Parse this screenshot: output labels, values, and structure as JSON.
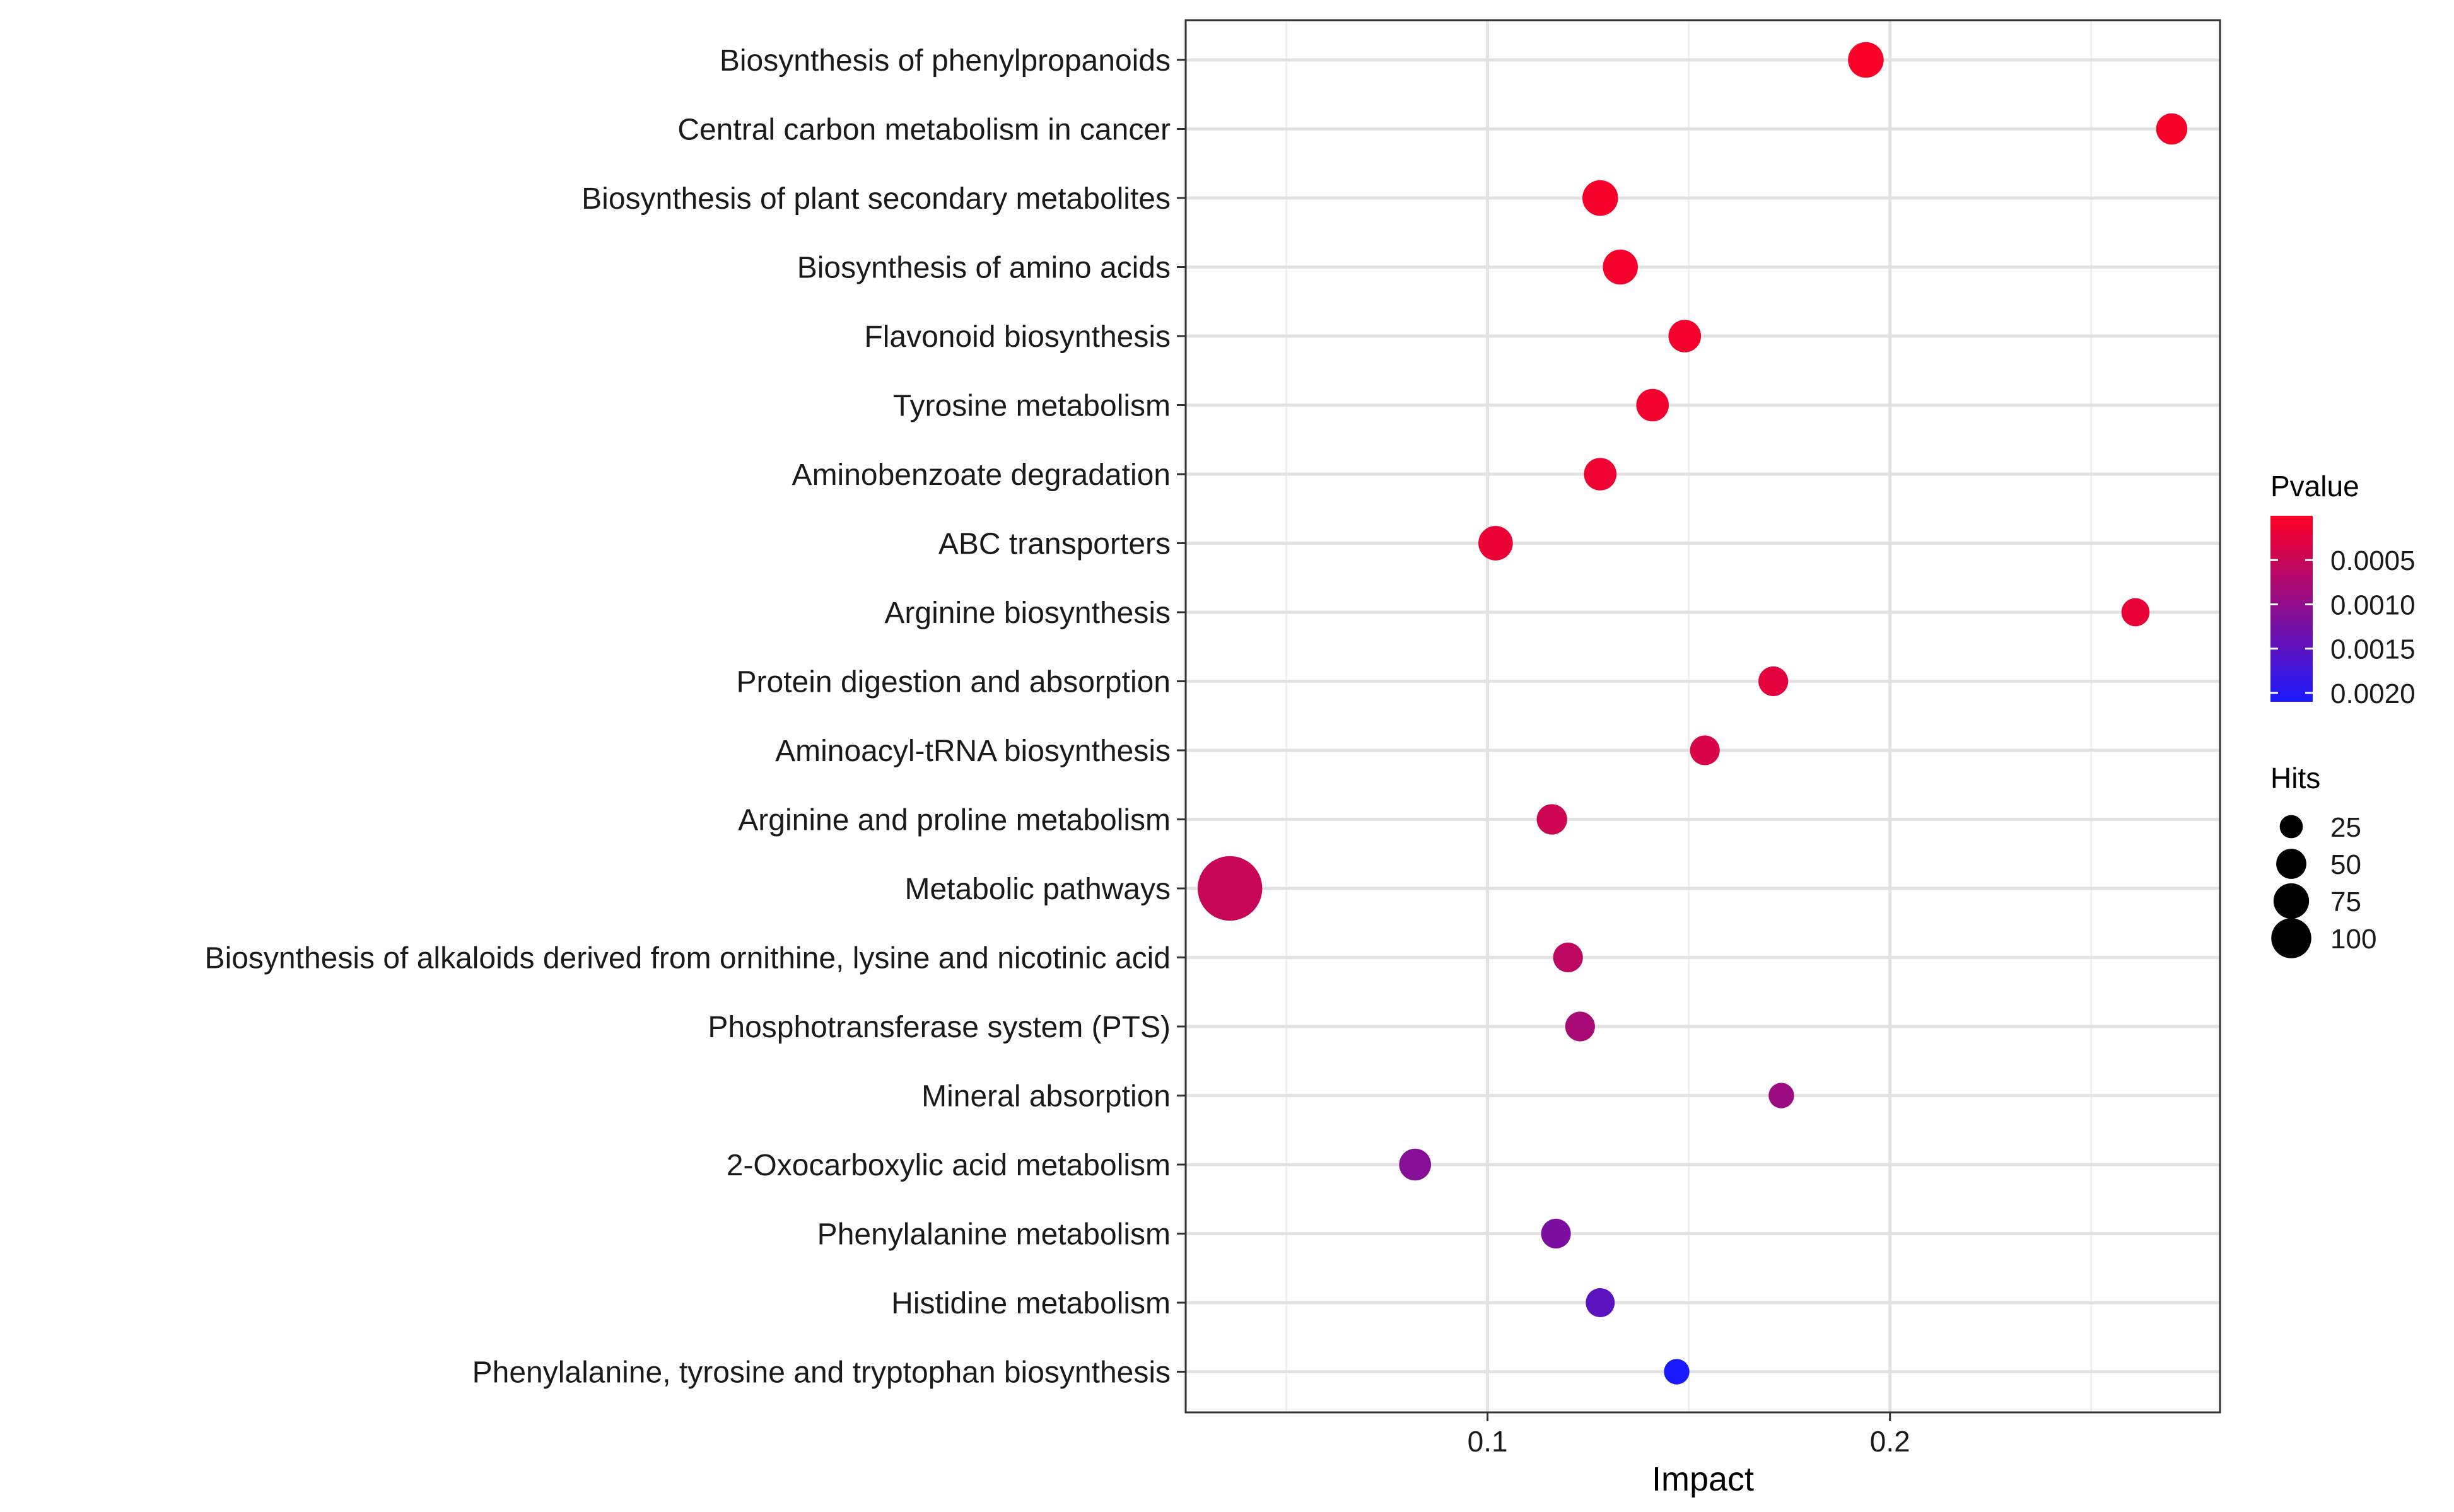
{
  "chart_data": {
    "type": "scatter",
    "title": "",
    "xlabel": "Impact",
    "ylabel": "",
    "xlim": [
      0.025,
      0.282
    ],
    "x_ticks": [
      0.1,
      0.2
    ],
    "x_tick_labels": [
      "0.1",
      "0.2"
    ],
    "x_minor_gridlines": [
      0.05,
      0.15,
      0.25
    ],
    "grid": true,
    "categories": [
      "Biosynthesis of phenylpropanoids",
      "Central carbon metabolism in cancer",
      "Biosynthesis of plant secondary metabolites",
      "Biosynthesis of amino acids",
      "Flavonoid biosynthesis",
      "Tyrosine metabolism",
      "Aminobenzoate degradation",
      "ABC transporters",
      "Arginine biosynthesis",
      "Protein digestion and absorption",
      "Aminoacyl-tRNA biosynthesis",
      "Arginine and proline metabolism",
      "Metabolic pathways",
      "Biosynthesis of alkaloids derived from ornithine, lysine and nicotinic acid",
      "Phosphotransferase system (PTS)",
      "Mineral absorption",
      "2-Oxocarboxylic acid metabolism",
      "Phenylalanine metabolism",
      "Histidine metabolism",
      "Phenylalanine, tyrosine and tryptophan biosynthesis"
    ],
    "points": [
      {
        "pathway": "Biosynthesis of phenylpropanoids",
        "impact": 0.194,
        "hits": 22,
        "pvalue": 5e-05
      },
      {
        "pathway": "Central carbon metabolism in cancer",
        "impact": 0.27,
        "hits": 15,
        "pvalue": 6e-05
      },
      {
        "pathway": "Biosynthesis of plant secondary metabolites",
        "impact": 0.128,
        "hits": 22,
        "pvalue": 8e-05
      },
      {
        "pathway": "Biosynthesis of amino acids",
        "impact": 0.133,
        "hits": 21,
        "pvalue": 9e-05
      },
      {
        "pathway": "Flavonoid biosynthesis",
        "impact": 0.149,
        "hits": 17,
        "pvalue": 0.0001
      },
      {
        "pathway": "Tyrosine metabolism",
        "impact": 0.141,
        "hits": 17,
        "pvalue": 0.00012
      },
      {
        "pathway": "Aminobenzoate degradation",
        "impact": 0.128,
        "hits": 17,
        "pvalue": 0.00015
      },
      {
        "pathway": "ABC transporters",
        "impact": 0.102,
        "hits": 20,
        "pvalue": 0.00018
      },
      {
        "pathway": "Arginine biosynthesis",
        "impact": 0.261,
        "hits": 11,
        "pvalue": 0.0002
      },
      {
        "pathway": "Protein digestion and absorption",
        "impact": 0.171,
        "hits": 13,
        "pvalue": 0.00025
      },
      {
        "pathway": "Aminoacyl-tRNA biosynthesis",
        "impact": 0.154,
        "hits": 13,
        "pvalue": 0.00035
      },
      {
        "pathway": "Arginine and proline metabolism",
        "impact": 0.116,
        "hits": 14,
        "pvalue": 0.00045
      },
      {
        "pathway": "Metabolic pathways",
        "impact": 0.036,
        "hits": 100,
        "pvalue": 0.0005
      },
      {
        "pathway": "Biosynthesis of alkaloids derived from ornithine, lysine and nicotinic acid",
        "impact": 0.12,
        "hits": 13,
        "pvalue": 0.0006
      },
      {
        "pathway": "Phosphotransferase system (PTS)",
        "impact": 0.123,
        "hits": 13,
        "pvalue": 0.0008
      },
      {
        "pathway": "Mineral absorption",
        "impact": 0.173,
        "hits": 8,
        "pvalue": 0.0009
      },
      {
        "pathway": "2-Oxocarboxylic acid metabolism",
        "impact": 0.082,
        "hits": 16,
        "pvalue": 0.0011
      },
      {
        "pathway": "Phenylalanine metabolism",
        "impact": 0.117,
        "hits": 13,
        "pvalue": 0.0012
      },
      {
        "pathway": "Histidine metabolism",
        "impact": 0.128,
        "hits": 12,
        "pvalue": 0.0015
      },
      {
        "pathway": "Phenylalanine, tyrosine and tryptophan biosynthesis",
        "impact": 0.147,
        "hits": 8,
        "pvalue": 0.0021
      }
    ],
    "color_legend": {
      "title": "Pvalue",
      "min": 0.0,
      "max": 0.0021,
      "low_color": "#FF0022",
      "high_color": "#1A1AFF",
      "ticks": [
        0.0005,
        0.001,
        0.0015,
        0.002
      ],
      "tick_labels": [
        "0.0005",
        "0.0010",
        "0.0015",
        "0.0020"
      ]
    },
    "size_legend": {
      "title": "Hits",
      "values": [
        25,
        50,
        75,
        100
      ],
      "labels": [
        "25",
        "50",
        "75",
        "100"
      ]
    },
    "legend_position": "right"
  }
}
